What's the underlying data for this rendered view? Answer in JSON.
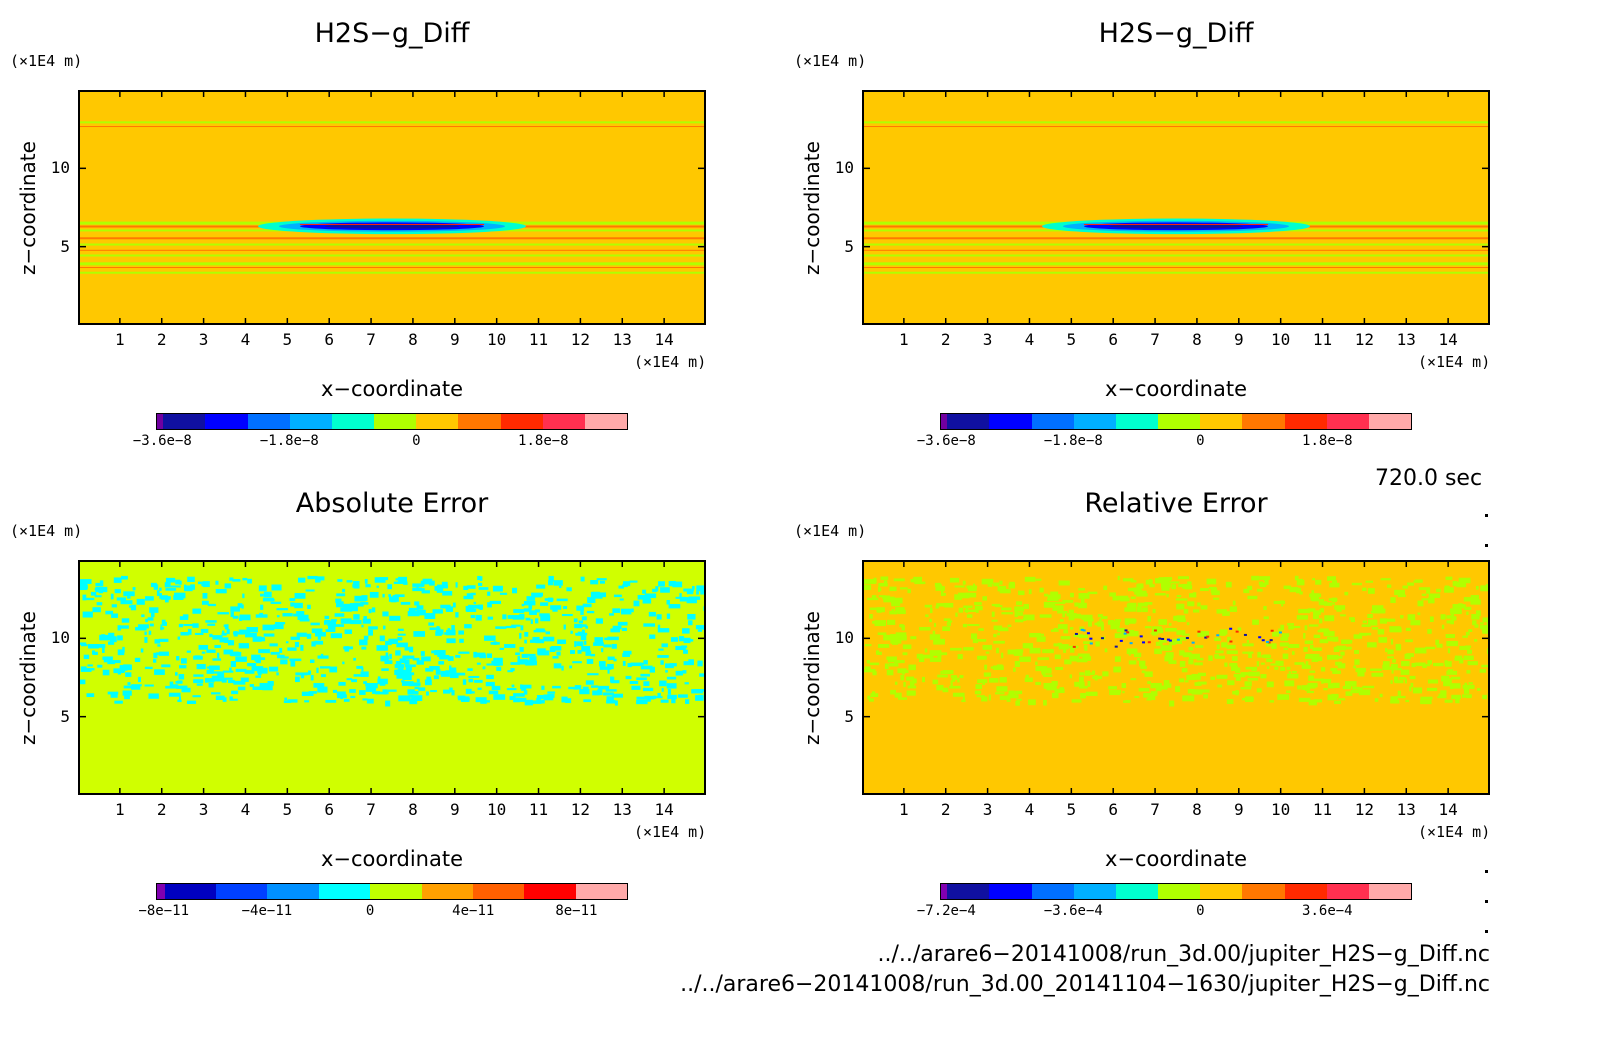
{
  "chart_data": [
    {
      "type": "heatmap",
      "title": "H2S−g_Diff",
      "xlabel": "x−coordinate",
      "ylabel": "z−coordinate",
      "x_unit": "(×1E4 m)",
      "y_unit": "(×1E4 m)",
      "xlim": [
        0,
        15
      ],
      "ylim": [
        0,
        15
      ],
      "x_ticks": [
        "1",
        "2",
        "3",
        "4",
        "5",
        "6",
        "7",
        "8",
        "9",
        "10",
        "11",
        "12",
        "13",
        "14"
      ],
      "y_ticks": [
        "5",
        "10"
      ],
      "background_color": "#FFC800",
      "features": "horizontal stratified bands near z≈3.5–6.5 and z≈13, a blue/red lens centered near x≈7.5, z≈6.3",
      "colorbar": {
        "ticks": [
          "−3.6e−8",
          "−1.8e−8",
          "0",
          "1.8e−8"
        ],
        "colors": [
          "#7000a0",
          "#1010a0",
          "#0000ff",
          "#0070ff",
          "#00b0ff",
          "#00ffd0",
          "#b0ff00",
          "#ffc800",
          "#ff7800",
          "#ff2a00",
          "#ff3050",
          "#ffaaaa"
        ]
      }
    },
    {
      "type": "heatmap",
      "title": "H2S−g_Diff",
      "xlabel": "x−coordinate",
      "ylabel": "z−coordinate",
      "x_unit": "(×1E4 m)",
      "y_unit": "(×1E4 m)",
      "xlim": [
        0,
        15
      ],
      "ylim": [
        0,
        15
      ],
      "x_ticks": [
        "1",
        "2",
        "3",
        "4",
        "5",
        "6",
        "7",
        "8",
        "9",
        "10",
        "11",
        "12",
        "13",
        "14"
      ],
      "y_ticks": [
        "5",
        "10"
      ],
      "background_color": "#FFC800",
      "features": "identical to the left panel",
      "colorbar": {
        "ticks": [
          "−3.6e−8",
          "−1.8e−8",
          "0",
          "1.8e−8"
        ],
        "colors": [
          "#7000a0",
          "#1010a0",
          "#0000ff",
          "#0070ff",
          "#00b0ff",
          "#00ffd0",
          "#b0ff00",
          "#ffc800",
          "#ff7800",
          "#ff2a00",
          "#ff3050",
          "#ffaaaa"
        ]
      }
    },
    {
      "type": "heatmap",
      "title": "Absolute Error",
      "xlabel": "x−coordinate",
      "ylabel": "z−coordinate",
      "x_unit": "(×1E4 m)",
      "y_unit": "(×1E4 m)",
      "xlim": [
        0,
        15
      ],
      "ylim": [
        0,
        15
      ],
      "x_ticks": [
        "1",
        "2",
        "3",
        "4",
        "5",
        "6",
        "7",
        "8",
        "9",
        "10",
        "11",
        "12",
        "13",
        "14"
      ],
      "y_ticks": [
        "5",
        "10"
      ],
      "background_color": "#D0FF00",
      "features": "cyan noise pattern between z≈6 and z≈14 across all x",
      "colorbar": {
        "ticks": [
          "−8e−11",
          "−4e−11",
          "0",
          "4e−11",
          "8e−11"
        ],
        "colors": [
          "#8000b0",
          "#0000c0",
          "#0040ff",
          "#0090ff",
          "#00ffff",
          "#c0ff00",
          "#ffa000",
          "#ff6000",
          "#ff0000",
          "#ffaaaa"
        ]
      }
    },
    {
      "type": "heatmap",
      "title": "Relative Error",
      "xlabel": "x−coordinate",
      "ylabel": "z−coordinate",
      "x_unit": "(×1E4 m)",
      "y_unit": "(×1E4 m)",
      "xlim": [
        0,
        15
      ],
      "ylim": [
        0,
        15
      ],
      "x_ticks": [
        "1",
        "2",
        "3",
        "4",
        "5",
        "6",
        "7",
        "8",
        "9",
        "10",
        "11",
        "12",
        "13",
        "14"
      ],
      "y_ticks": [
        "5",
        "10"
      ],
      "background_color": "#FFC800",
      "features": "green noise pattern between z≈6 and z≈14, scattered blue/red specks near x≈5–10, z≈10",
      "colorbar": {
        "ticks": [
          "−7.2e−4",
          "−3.6e−4",
          "0",
          "3.6e−4"
        ],
        "colors": [
          "#8000b0",
          "#1010a0",
          "#0000ff",
          "#0070ff",
          "#00b0ff",
          "#00ffd0",
          "#b0ff00",
          "#ffc800",
          "#ff7800",
          "#ff2a00",
          "#ff3050",
          "#ffaaaa"
        ]
      }
    }
  ],
  "time_label": "720.0 sec",
  "file_paths": [
    "../../arare6−20141008/run_3d.00/jupiter_H2S−g_Diff.nc",
    "../../arare6−20141008/run_3d.00_20141104−1630/jupiter_H2S−g_Diff.nc"
  ]
}
